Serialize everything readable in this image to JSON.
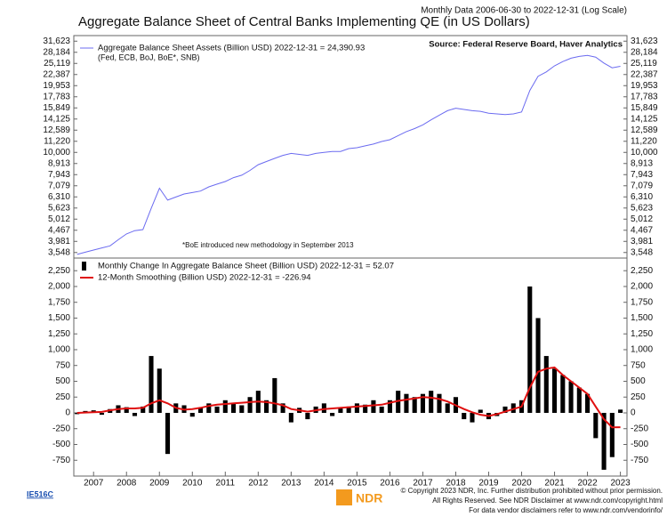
{
  "chart_data": [
    {
      "type": "line",
      "title": "Aggregate Balance Sheet of Central Banks Implementing QE (in US Dollars)",
      "subtitle": "Monthly Data 2006-06-30 to 2022-12-31 (Log Scale)",
      "source": "Source: Federal Reserve Board, Haver Analytics",
      "legend_note": "(Fed, ECB, BoJ, BoE*, SNB)",
      "annotation": "*BoE introduced new methodology in September 2013",
      "log_scale": true,
      "x": [
        2006.5,
        2006.75,
        2007,
        2007.25,
        2007.5,
        2007.75,
        2008,
        2008.25,
        2008.5,
        2008.75,
        2009,
        2009.25,
        2009.5,
        2009.75,
        2010,
        2010.25,
        2010.5,
        2010.75,
        2011,
        2011.25,
        2011.5,
        2011.75,
        2012,
        2012.25,
        2012.5,
        2012.75,
        2013,
        2013.25,
        2013.5,
        2013.75,
        2014,
        2014.25,
        2014.5,
        2014.75,
        2015,
        2015.25,
        2015.5,
        2015.75,
        2016,
        2016.25,
        2016.5,
        2016.75,
        2017,
        2017.25,
        2017.5,
        2017.75,
        2018,
        2018.25,
        2018.5,
        2018.75,
        2019,
        2019.25,
        2019.5,
        2019.75,
        2020,
        2020.25,
        2020.5,
        2020.75,
        2021,
        2021.25,
        2021.5,
        2021.75,
        2022,
        2022.25,
        2022.5,
        2022.75,
        2023
      ],
      "xlim": [
        2006.4,
        2023.2
      ],
      "series": [
        {
          "name": "Aggregate Balance Sheet Assets (Billion USD) 2022-12-31 = 24,390.93",
          "color": "#6b6bf0",
          "values": [
            3480,
            3560,
            3640,
            3720,
            3800,
            4050,
            4300,
            4450,
            4500,
            5600,
            6900,
            6100,
            6300,
            6500,
            6600,
            6700,
            7000,
            7200,
            7400,
            7700,
            7900,
            8300,
            8800,
            9100,
            9400,
            9700,
            9900,
            9800,
            9700,
            9900,
            10000,
            10100,
            10100,
            10400,
            10500,
            10700,
            10900,
            11200,
            11400,
            11900,
            12400,
            12800,
            13300,
            14000,
            14700,
            15400,
            15800,
            15600,
            15400,
            15300,
            15000,
            14900,
            14800,
            14900,
            15200,
            19000,
            22000,
            23000,
            24500,
            25600,
            26500,
            27000,
            27300,
            26800,
            25200,
            24000,
            24390.93
          ]
        }
      ],
      "ylim": [
        3350,
        33500
      ],
      "yticks": [
        {
          "value": 3548,
          "label": "3,548"
        },
        {
          "value": 3981,
          "label": "3,981"
        },
        {
          "value": 4467,
          "label": "4,467"
        },
        {
          "value": 5012,
          "label": "5,012"
        },
        {
          "value": 5623,
          "label": "5,623"
        },
        {
          "value": 6310,
          "label": "6,310"
        },
        {
          "value": 7079,
          "label": "7,079"
        },
        {
          "value": 7943,
          "label": "7,943"
        },
        {
          "value": 8913,
          "label": "8,913"
        },
        {
          "value": 10000,
          "label": "10,000"
        },
        {
          "value": 11220,
          "label": "11,220"
        },
        {
          "value": 12589,
          "label": "12,589"
        },
        {
          "value": 14125,
          "label": "14,125"
        },
        {
          "value": 15849,
          "label": "15,849"
        },
        {
          "value": 17783,
          "label": "17,783"
        },
        {
          "value": 19953,
          "label": "19,953"
        },
        {
          "value": 22387,
          "label": "22,387"
        },
        {
          "value": 25119,
          "label": "25,119"
        },
        {
          "value": 28184,
          "label": "28,184"
        },
        {
          "value": 31623,
          "label": "31,623"
        }
      ]
    },
    {
      "type": "bar",
      "x": [
        2006.5,
        2006.75,
        2007,
        2007.25,
        2007.5,
        2007.75,
        2008,
        2008.25,
        2008.5,
        2008.75,
        2009,
        2009.25,
        2009.5,
        2009.75,
        2010,
        2010.25,
        2010.5,
        2010.75,
        2011,
        2011.25,
        2011.5,
        2011.75,
        2012,
        2012.25,
        2012.5,
        2012.75,
        2013,
        2013.25,
        2013.5,
        2013.75,
        2014,
        2014.25,
        2014.5,
        2014.75,
        2015,
        2015.25,
        2015.5,
        2015.75,
        2016,
        2016.25,
        2016.5,
        2016.75,
        2017,
        2017.25,
        2017.5,
        2017.75,
        2018,
        2018.25,
        2018.5,
        2018.75,
        2019,
        2019.25,
        2019.5,
        2019.75,
        2020,
        2020.25,
        2020.5,
        2020.75,
        2021,
        2021.25,
        2021.5,
        2021.75,
        2022,
        2022.25,
        2022.5,
        2022.75,
        2023
      ],
      "xlim": [
        2006.4,
        2023.2
      ],
      "xticks": [
        2007,
        2008,
        2009,
        2010,
        2011,
        2012,
        2013,
        2014,
        2015,
        2016,
        2017,
        2018,
        2019,
        2020,
        2021,
        2022,
        2023
      ],
      "series": [
        {
          "name": "Monthly Change In Aggregate Balance Sheet (Billion USD) 2022-12-31 = 52.07",
          "color": "#000000",
          "type": "bar",
          "values": [
            -20,
            30,
            40,
            -30,
            60,
            120,
            90,
            -50,
            100,
            900,
            700,
            -650,
            150,
            120,
            -60,
            80,
            150,
            100,
            200,
            150,
            120,
            250,
            350,
            200,
            550,
            150,
            -150,
            80,
            -100,
            100,
            150,
            -50,
            80,
            100,
            150,
            130,
            200,
            100,
            200,
            350,
            300,
            250,
            300,
            350,
            300,
            150,
            250,
            -100,
            -150,
            50,
            -100,
            -50,
            100,
            150,
            200,
            2000,
            1500,
            900,
            700,
            600,
            500,
            400,
            300,
            -400,
            -900,
            -700,
            52.07
          ]
        },
        {
          "name": "12-Month Smoothing (Billion USD) 2022-12-31 = -226.94",
          "color": "#e01010",
          "type": "line",
          "values": [
            0,
            5,
            10,
            15,
            40,
            60,
            70,
            70,
            80,
            150,
            200,
            150,
            80,
            50,
            60,
            80,
            110,
            130,
            140,
            150,
            160,
            170,
            180,
            170,
            150,
            120,
            60,
            40,
            20,
            40,
            60,
            70,
            80,
            90,
            100,
            110,
            120,
            130,
            160,
            190,
            210,
            230,
            250,
            240,
            220,
            180,
            120,
            60,
            10,
            -30,
            -50,
            -20,
            20,
            60,
            100,
            400,
            650,
            700,
            720,
            600,
            500,
            400,
            300,
            100,
            -100,
            -230,
            -226.94
          ]
        }
      ],
      "ylim": [
        -1000,
        2450
      ],
      "yticks": [
        {
          "value": -750,
          "label": "-750"
        },
        {
          "value": -500,
          "label": "-500"
        },
        {
          "value": -250,
          "label": "-250"
        },
        0,
        250,
        500,
        750,
        {
          "value": 1000,
          "label": "1,000"
        },
        {
          "value": 1250,
          "label": "1,250"
        },
        {
          "value": 1500,
          "label": "1,500"
        },
        {
          "value": 1750,
          "label": "1,750"
        },
        {
          "value": 2000,
          "label": "2,000"
        },
        {
          "value": 2250,
          "label": "2,250"
        }
      ]
    }
  ],
  "footer": {
    "code": "IE516C",
    "logo": "NDR",
    "lines": [
      "© Copyright 2023 NDR, Inc. Further distribution prohibited without prior permission.",
      "All Rights Reserved. See NDR Disclaimer at www.ndr.com/copyright.html",
      "For data vendor disclaimers refer to www.ndr.com/vendorinfo/"
    ]
  }
}
